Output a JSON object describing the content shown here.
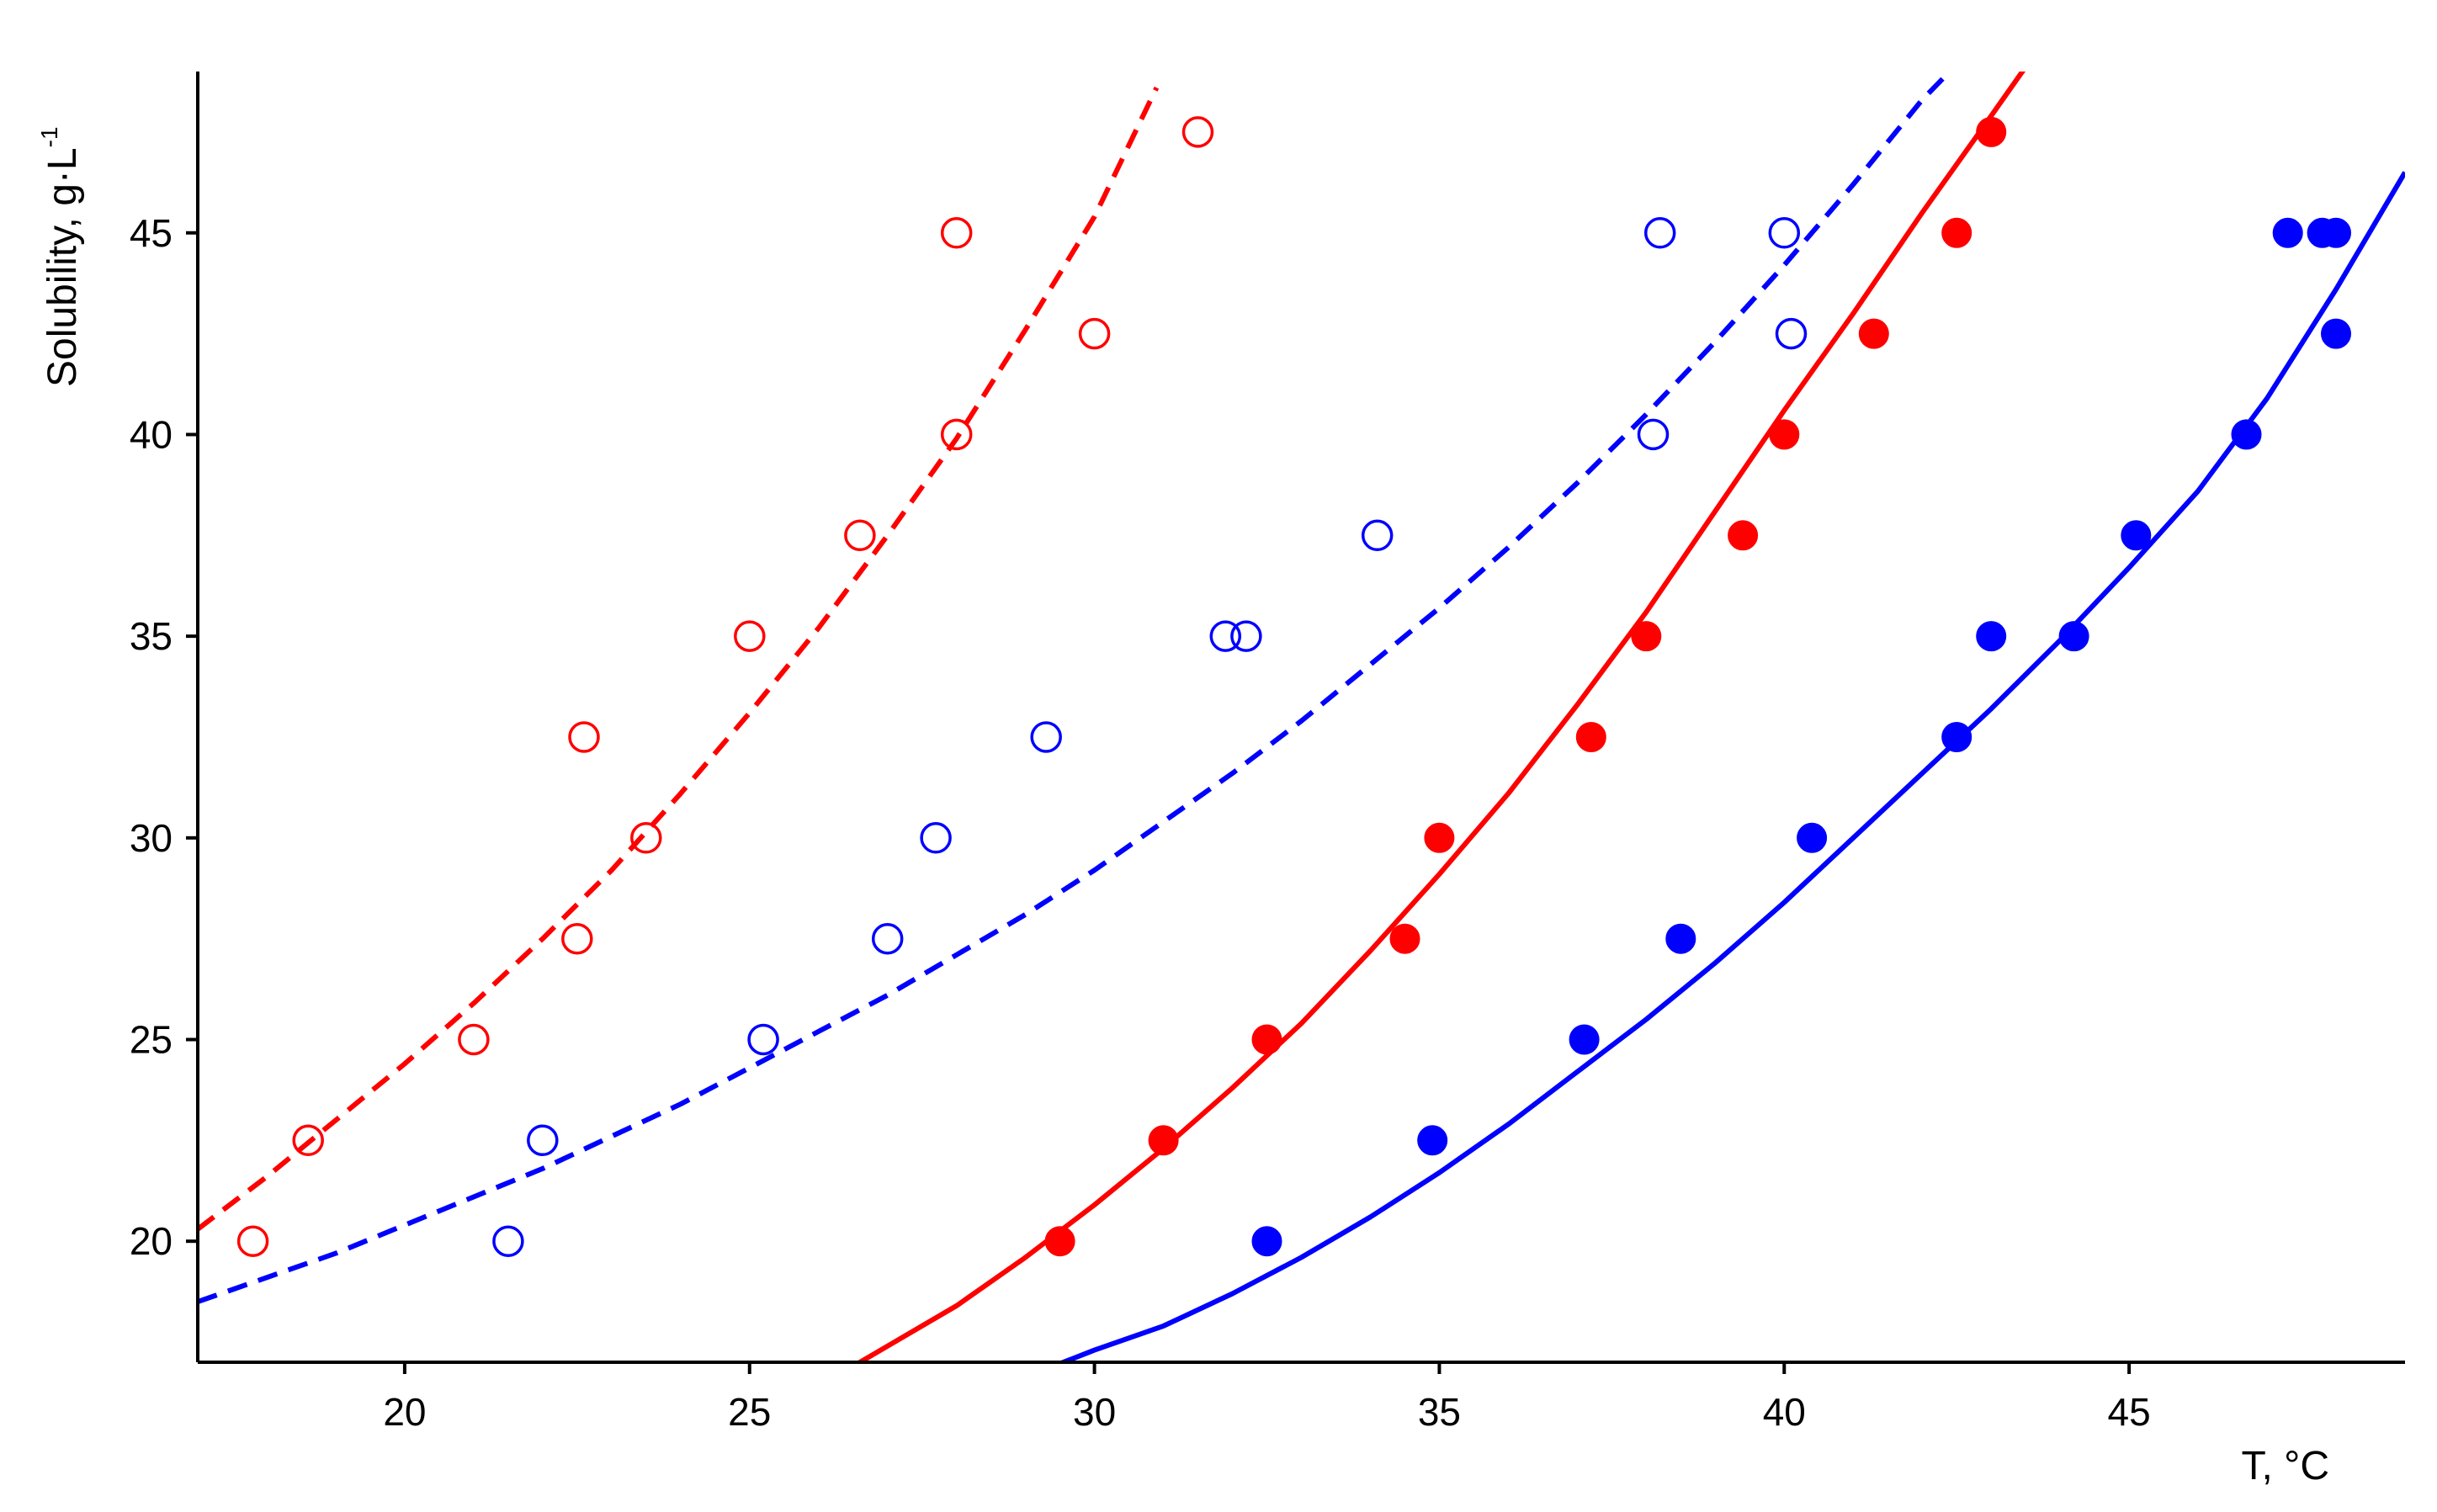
{
  "chart_data": {
    "type": "scatter",
    "xlabel": "T, °C",
    "ylabel": {
      "text": "Solubility, g·L",
      "sup": "-1"
    },
    "xlim": [
      17,
      49
    ],
    "ylim": [
      17,
      49
    ],
    "x_ticks": [
      "20",
      "25",
      "30",
      "35",
      "40",
      "45"
    ],
    "y_ticks": [
      "20",
      "25",
      "30",
      "35",
      "40",
      "45"
    ],
    "grid": false,
    "series": [
      {
        "color": "#ff0000",
        "marker": "open-circle",
        "points": [
          [
            17.8,
            20
          ],
          [
            18.6,
            22.5
          ],
          [
            21.0,
            25
          ],
          [
            22.5,
            27.5
          ],
          [
            22.6,
            32.5
          ],
          [
            23.5,
            30
          ],
          [
            25.0,
            35
          ],
          [
            26.6,
            37.5
          ],
          [
            28.0,
            40
          ],
          [
            28.0,
            45
          ],
          [
            30.0,
            42.5
          ],
          [
            31.5,
            47.5
          ]
        ],
        "fit_line": {
          "style": "dashed",
          "x": [
            17.0,
            18,
            19,
            20,
            21,
            22,
            23,
            24,
            25,
            26,
            27,
            28,
            29,
            30,
            30.9
          ],
          "y": [
            20.3,
            21.6,
            23.0,
            24.4,
            25.9,
            27.5,
            29.2,
            31.1,
            33.1,
            35.2,
            37.5,
            39.9,
            42.6,
            45.4,
            48.6
          ]
        }
      },
      {
        "color": "#0000ff",
        "marker": "open-circle",
        "points": [
          [
            21.5,
            20
          ],
          [
            22.0,
            22.5
          ],
          [
            25.2,
            25
          ],
          [
            27.0,
            27.5
          ],
          [
            27.7,
            30
          ],
          [
            29.3,
            32.5
          ],
          [
            31.9,
            35
          ],
          [
            32.2,
            35
          ],
          [
            34.1,
            37.5
          ],
          [
            38.1,
            40
          ],
          [
            38.2,
            45
          ],
          [
            40.0,
            45
          ],
          [
            40.1,
            42.5
          ]
        ],
        "fit_line": {
          "style": "dashed",
          "x": [
            17.0,
            18,
            19,
            20,
            21,
            22,
            23,
            24,
            25,
            26,
            27,
            28,
            29,
            30,
            31,
            32,
            33,
            34,
            35,
            36,
            37,
            38,
            39,
            40,
            41,
            42,
            42.4
          ],
          "y": [
            18.5,
            19.1,
            19.7,
            20.4,
            21.1,
            21.8,
            22.6,
            23.4,
            24.3,
            25.2,
            26.1,
            27.1,
            28.1,
            29.2,
            30.4,
            31.6,
            32.9,
            34.3,
            35.7,
            37.2,
            38.8,
            40.5,
            42.3,
            44.2,
            46.2,
            48.3,
            49.0
          ]
        }
      },
      {
        "color": "#ff0000",
        "marker": "filled-circle",
        "points": [
          [
            29.5,
            20
          ],
          [
            31.0,
            22.5
          ],
          [
            32.5,
            25
          ],
          [
            34.5,
            27.5
          ],
          [
            35.0,
            30
          ],
          [
            37.2,
            32.5
          ],
          [
            38.0,
            35
          ],
          [
            39.4,
            37.5
          ],
          [
            40.0,
            40
          ],
          [
            41.3,
            42.5
          ],
          [
            42.5,
            45
          ],
          [
            43.0,
            47.5
          ]
        ],
        "fit_line": {
          "style": "solid",
          "x": [
            26.5,
            27,
            28,
            29,
            30,
            31,
            32,
            33,
            34,
            35,
            36,
            37,
            38,
            39,
            40,
            41,
            42,
            43,
            43.7
          ],
          "y": [
            16.9,
            17.4,
            18.4,
            19.6,
            20.9,
            22.3,
            23.8,
            25.4,
            27.2,
            29.1,
            31.1,
            33.3,
            35.6,
            38.1,
            40.6,
            43.0,
            45.5,
            47.9,
            49.6
          ]
        }
      },
      {
        "color": "#0000ff",
        "marker": "filled-circle",
        "points": [
          [
            32.5,
            20
          ],
          [
            34.9,
            22.5
          ],
          [
            37.1,
            25
          ],
          [
            38.5,
            27.5
          ],
          [
            40.4,
            30
          ],
          [
            42.5,
            32.5
          ],
          [
            43.0,
            35
          ],
          [
            44.2,
            35
          ],
          [
            45.1,
            37.5
          ],
          [
            46.7,
            40
          ],
          [
            47.3,
            45
          ],
          [
            47.8,
            45
          ],
          [
            48.0,
            45
          ],
          [
            48.0,
            42.5
          ]
        ],
        "fit_line": {
          "style": "solid",
          "x": [
            29.4,
            30,
            31,
            32,
            33,
            34,
            35,
            36,
            37,
            38,
            39,
            40,
            41,
            42,
            43,
            44,
            45,
            46,
            47,
            48,
            49
          ],
          "y": [
            16.9,
            17.3,
            17.9,
            18.7,
            19.6,
            20.6,
            21.7,
            22.9,
            24.2,
            25.5,
            26.9,
            28.4,
            30.0,
            31.6,
            33.2,
            34.9,
            36.7,
            38.6,
            40.9,
            43.6,
            46.5
          ]
        }
      }
    ]
  }
}
